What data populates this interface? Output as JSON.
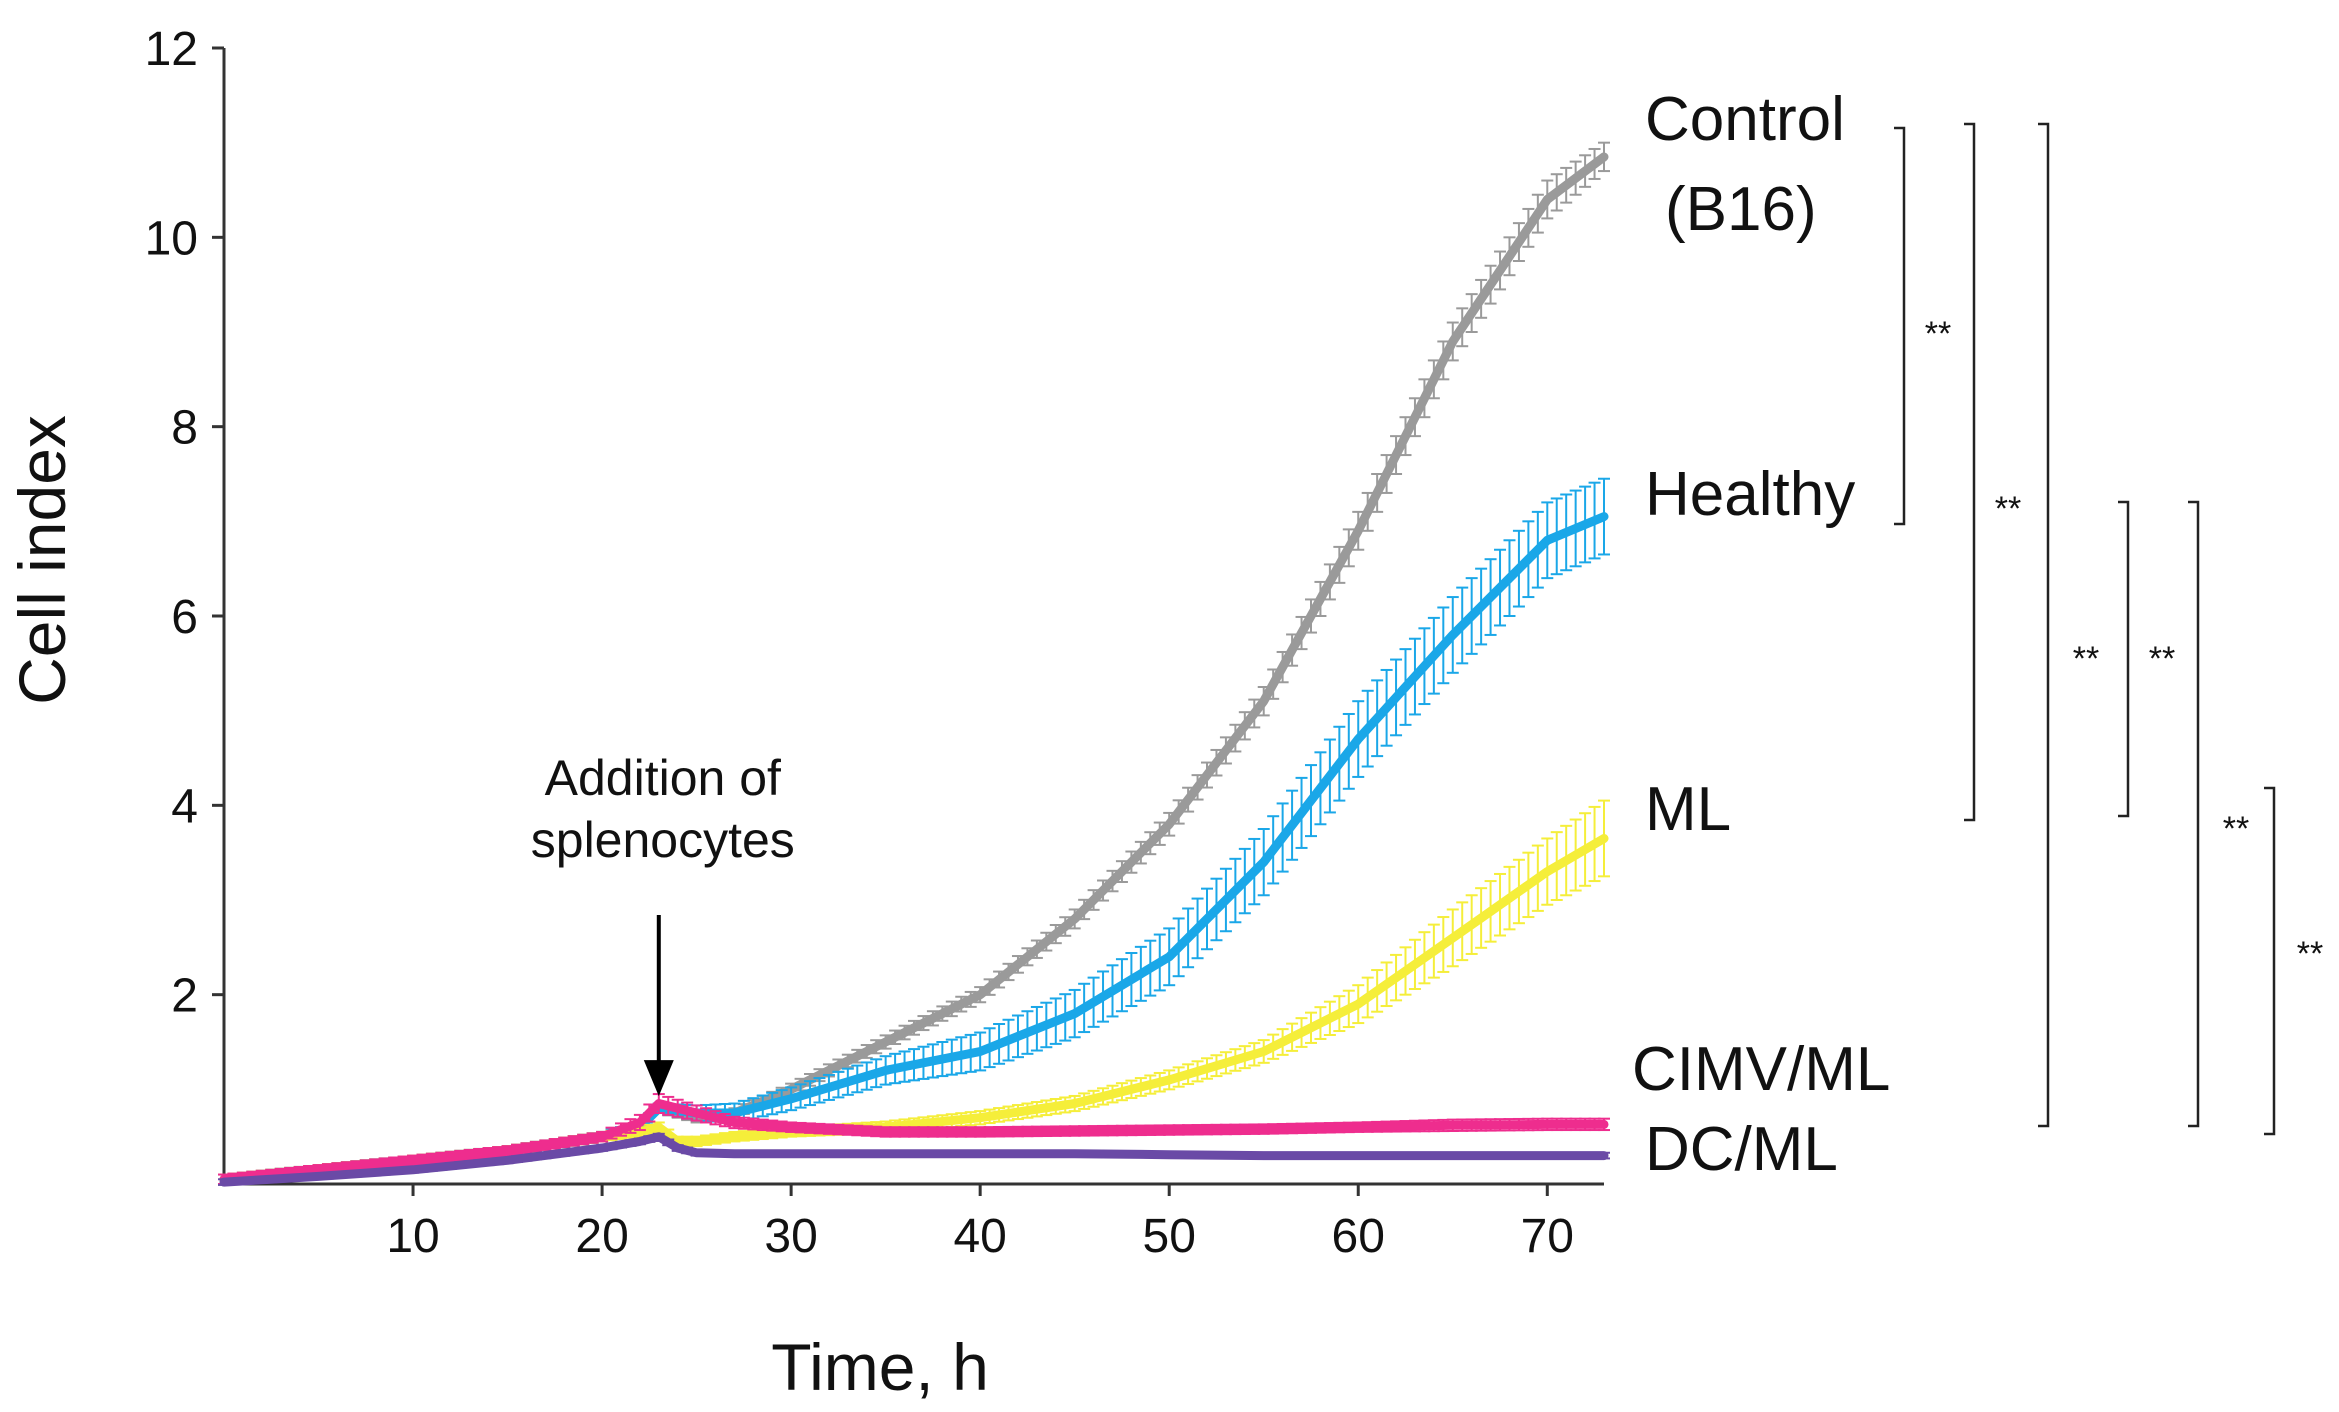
{
  "chart_data": {
    "type": "line",
    "title": "",
    "xlabel": "Time, h",
    "ylabel": "Cell index",
    "xlim": [
      0,
      73
    ],
    "ylim": [
      0,
      12
    ],
    "x_ticks": [
      10,
      20,
      30,
      40,
      50,
      60,
      70
    ],
    "y_ticks": [
      2,
      4,
      6,
      8,
      10,
      12
    ],
    "x_tick_labels": [
      "10",
      "20",
      "30",
      "40",
      "50",
      "60",
      "70"
    ],
    "y_tick_labels": [
      "2",
      "4",
      "6",
      "8",
      "10",
      "12"
    ],
    "grid": false,
    "legend": "series labels at right end of lines",
    "series": [
      {
        "name": "Control (B16)",
        "label_lines": [
          "Control",
          "(B16)"
        ],
        "color": "#9a9a9a",
        "x": [
          0,
          5,
          10,
          15,
          20,
          22,
          23,
          25,
          27,
          30,
          35,
          40,
          45,
          50,
          55,
          60,
          65,
          70,
          73
        ],
        "y": [
          0.05,
          0.15,
          0.25,
          0.35,
          0.5,
          0.6,
          0.8,
          0.7,
          0.75,
          1.0,
          1.5,
          2.0,
          2.8,
          3.8,
          5.1,
          6.9,
          8.9,
          10.4,
          10.85
        ],
        "error": [
          0.05,
          0.05,
          0.05,
          0.05,
          0.05,
          0.05,
          0.05,
          0.05,
          0.05,
          0.06,
          0.07,
          0.08,
          0.1,
          0.12,
          0.15,
          0.2,
          0.2,
          0.2,
          0.15
        ]
      },
      {
        "name": "Healthy",
        "label_lines": [
          "Healthy"
        ],
        "color": "#1aa7e8",
        "x": [
          0,
          5,
          10,
          15,
          20,
          22,
          23,
          25,
          27,
          30,
          35,
          40,
          45,
          50,
          55,
          60,
          65,
          70,
          73
        ],
        "y": [
          0.05,
          0.15,
          0.25,
          0.35,
          0.5,
          0.6,
          0.8,
          0.75,
          0.75,
          0.9,
          1.2,
          1.4,
          1.8,
          2.4,
          3.4,
          4.7,
          5.8,
          6.8,
          7.05
        ],
        "error": [
          0.05,
          0.05,
          0.05,
          0.05,
          0.05,
          0.05,
          0.05,
          0.08,
          0.1,
          0.12,
          0.15,
          0.2,
          0.25,
          0.3,
          0.35,
          0.4,
          0.4,
          0.4,
          0.4
        ]
      },
      {
        "name": "ML",
        "label_lines": [
          "ML"
        ],
        "color": "#f5ee3a",
        "x": [
          0,
          5,
          10,
          15,
          20,
          22,
          23,
          24,
          25,
          27,
          30,
          35,
          40,
          45,
          50,
          55,
          60,
          65,
          70,
          73
        ],
        "y": [
          0.05,
          0.15,
          0.25,
          0.35,
          0.5,
          0.55,
          0.6,
          0.45,
          0.45,
          0.5,
          0.55,
          0.6,
          0.7,
          0.85,
          1.1,
          1.4,
          1.9,
          2.6,
          3.3,
          3.65
        ],
        "error": [
          0.05,
          0.05,
          0.05,
          0.05,
          0.05,
          0.05,
          0.05,
          0.05,
          0.05,
          0.05,
          0.05,
          0.06,
          0.07,
          0.08,
          0.1,
          0.12,
          0.2,
          0.3,
          0.35,
          0.4
        ]
      },
      {
        "name": "CIMV/ML",
        "label_lines": [
          "CIMV/ML"
        ],
        "color": "#ee2d8e",
        "x": [
          0,
          5,
          10,
          15,
          20,
          22,
          23,
          25,
          27,
          30,
          35,
          40,
          45,
          50,
          55,
          60,
          65,
          70,
          73
        ],
        "y": [
          0.05,
          0.15,
          0.25,
          0.35,
          0.5,
          0.65,
          0.85,
          0.75,
          0.65,
          0.6,
          0.55,
          0.55,
          0.56,
          0.57,
          0.58,
          0.6,
          0.62,
          0.63,
          0.63
        ],
        "error": [
          0.05,
          0.05,
          0.05,
          0.05,
          0.05,
          0.08,
          0.1,
          0.08,
          0.06,
          0.05,
          0.05,
          0.05,
          0.05,
          0.05,
          0.05,
          0.05,
          0.06,
          0.06,
          0.06
        ]
      },
      {
        "name": "DC/ML",
        "label_lines": [
          "DC/ML"
        ],
        "color": "#6a4aa6",
        "x": [
          0,
          5,
          10,
          15,
          20,
          22,
          23,
          24,
          25,
          27,
          30,
          35,
          40,
          45,
          50,
          55,
          60,
          65,
          70,
          73
        ],
        "y": [
          0.02,
          0.08,
          0.15,
          0.25,
          0.38,
          0.45,
          0.5,
          0.38,
          0.33,
          0.32,
          0.32,
          0.32,
          0.32,
          0.32,
          0.31,
          0.3,
          0.3,
          0.3,
          0.3,
          0.3
        ],
        "error": [
          0.03,
          0.03,
          0.03,
          0.03,
          0.03,
          0.03,
          0.03,
          0.03,
          0.03,
          0.03,
          0.03,
          0.03,
          0.03,
          0.03,
          0.03,
          0.03,
          0.03,
          0.03,
          0.03,
          0.03
        ]
      }
    ],
    "annotations": [
      {
        "text_lines": [
          "Addition of",
          "splenocytes"
        ],
        "x": 23,
        "arrow_to_y": 0.95
      }
    ],
    "significance": [
      {
        "from": "Control (B16)",
        "to": "Healthy",
        "label": "**"
      },
      {
        "from": "Control (B16)",
        "to": "ML",
        "label": "**"
      },
      {
        "from": "Control (B16)",
        "to": "CIMV/ML",
        "label": "**"
      },
      {
        "from": "Healthy",
        "to": "ML",
        "label": "**"
      },
      {
        "from": "Healthy",
        "to": "CIMV/ML",
        "label": "**"
      },
      {
        "from": "ML",
        "to": "DC/ML",
        "label": "**"
      }
    ]
  }
}
